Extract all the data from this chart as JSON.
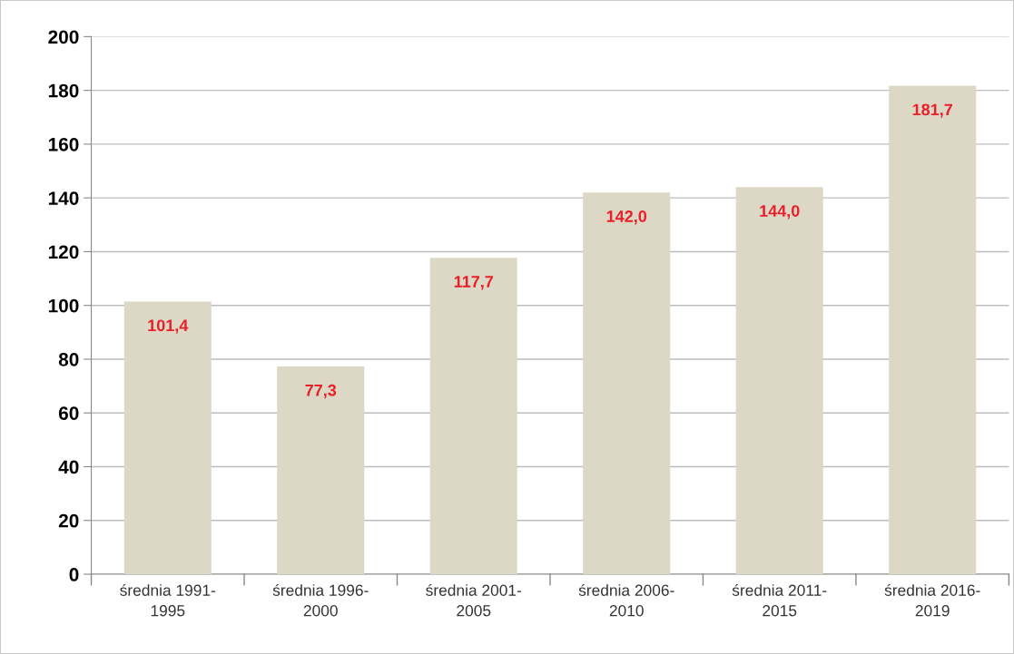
{
  "chart_data": {
    "type": "bar",
    "categories": [
      "średnia 1991-\n1995",
      "średnia 1996-\n2000",
      "średnia 2001-\n2005",
      "średnia 2006-\n2010",
      "średnia 2011-\n2015",
      "średnia 2016-\n2019"
    ],
    "values": [
      101.4,
      77.3,
      117.7,
      142.0,
      144.0,
      181.7
    ],
    "value_labels": [
      "101,4",
      "77,3",
      "117,7",
      "142,0",
      "144,0",
      "181,7"
    ],
    "color": "#ddd7c5",
    "ylim": [
      0,
      200
    ],
    "yticks": [
      0,
      20,
      40,
      60,
      80,
      100,
      120,
      140,
      160,
      180,
      200
    ],
    "grid": "y"
  }
}
